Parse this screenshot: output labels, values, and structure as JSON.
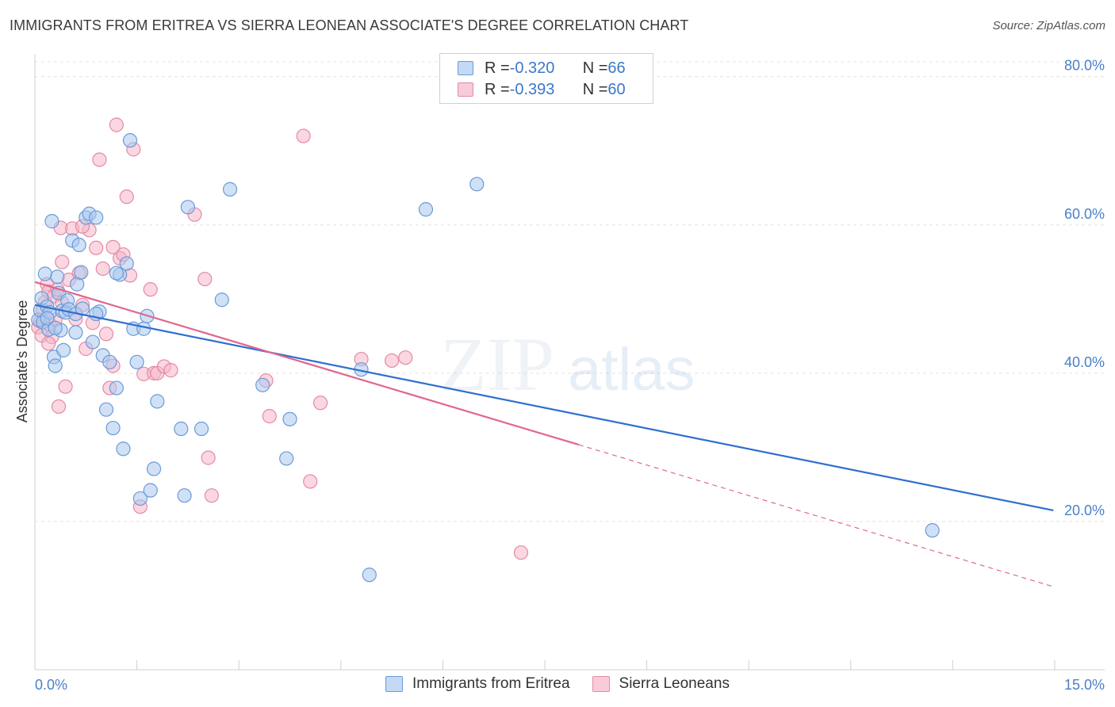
{
  "header": {
    "title": "IMMIGRANTS FROM ERITREA VS SIERRA LEONEAN ASSOCIATE'S DEGREE CORRELATION CHART",
    "source": "Source: ZipAtlas.com"
  },
  "watermark": {
    "zip": "ZIP",
    "atlas": "atlas"
  },
  "legend": {
    "rows": [
      {
        "r_label": "R = ",
        "r_value": "-0.320",
        "n_label": "N = ",
        "n_value": "66"
      },
      {
        "r_label": "R = ",
        "r_value": "-0.393",
        "n_label": "N = ",
        "n_value": "60"
      }
    ]
  },
  "colors": {
    "blue_fill": "#aac8ef",
    "blue_stroke": "#6b9ad8",
    "blue_line": "#2f6fcf",
    "pink_fill": "#f5b7c9",
    "pink_stroke": "#e48aa6",
    "pink_line": "#e0668f",
    "grid": "#e4e4e4",
    "axis_text": "#4a7fc9"
  },
  "chart_data": {
    "type": "scatter",
    "title": "IMMIGRANTS FROM ERITREA VS SIERRA LEONEAN ASSOCIATE'S DEGREE CORRELATION CHART",
    "xlabel": "",
    "ylabel": "Associate's Degree",
    "xlim": [
      0,
      15
    ],
    "ylim": [
      0,
      82
    ],
    "x_tick_labels": [
      "0.0%",
      "15.0%"
    ],
    "y_ticks": [
      20,
      40,
      60,
      80
    ],
    "y_tick_labels": [
      "20.0%",
      "40.0%",
      "60.0%",
      "80.0%"
    ],
    "grid": true,
    "series": [
      {
        "name": "Immigrants from Eritrea",
        "color": "blue",
        "trend": {
          "x0": 0,
          "y0": 49.2,
          "x1": 14.98,
          "y1": 21.5,
          "solid_until": 14.98
        },
        "points": [
          [
            0.05,
            47.2
          ],
          [
            0.08,
            48.5
          ],
          [
            0.1,
            50.1
          ],
          [
            0.12,
            46.9
          ],
          [
            0.15,
            53.4
          ],
          [
            0.18,
            49.0
          ],
          [
            0.2,
            45.9
          ],
          [
            0.22,
            48.2
          ],
          [
            0.25,
            60.5
          ],
          [
            0.28,
            42.2
          ],
          [
            0.3,
            41.0
          ],
          [
            0.33,
            53.0
          ],
          [
            0.35,
            50.8
          ],
          [
            0.38,
            45.8
          ],
          [
            0.4,
            48.4
          ],
          [
            0.42,
            43.1
          ],
          [
            0.45,
            48.2
          ],
          [
            0.48,
            49.8
          ],
          [
            0.5,
            48.6
          ],
          [
            0.55,
            57.9
          ],
          [
            0.6,
            48.0
          ],
          [
            0.62,
            52.0
          ],
          [
            0.65,
            57.3
          ],
          [
            0.68,
            53.6
          ],
          [
            0.7,
            48.7
          ],
          [
            0.75,
            61.0
          ],
          [
            0.8,
            61.5
          ],
          [
            0.85,
            44.2
          ],
          [
            0.9,
            61.0
          ],
          [
            0.95,
            48.3
          ],
          [
            1.0,
            42.4
          ],
          [
            1.05,
            35.1
          ],
          [
            1.1,
            41.5
          ],
          [
            1.15,
            32.6
          ],
          [
            1.2,
            38.0
          ],
          [
            1.25,
            53.3
          ],
          [
            1.3,
            29.8
          ],
          [
            1.35,
            54.8
          ],
          [
            1.4,
            71.4
          ],
          [
            1.45,
            46.0
          ],
          [
            1.5,
            41.5
          ],
          [
            1.55,
            23.1
          ],
          [
            1.6,
            46.0
          ],
          [
            1.65,
            47.7
          ],
          [
            1.7,
            24.2
          ],
          [
            1.75,
            27.1
          ],
          [
            1.8,
            36.2
          ],
          [
            2.15,
            32.5
          ],
          [
            2.2,
            23.5
          ],
          [
            2.25,
            62.4
          ],
          [
            2.45,
            32.5
          ],
          [
            2.75,
            49.9
          ],
          [
            2.87,
            64.8
          ],
          [
            3.35,
            38.4
          ],
          [
            3.7,
            28.5
          ],
          [
            3.75,
            33.8
          ],
          [
            4.8,
            40.5
          ],
          [
            4.92,
            12.8
          ],
          [
            5.75,
            62.1
          ],
          [
            6.5,
            65.5
          ],
          [
            13.2,
            18.8
          ],
          [
            0.18,
            47.4
          ],
          [
            0.3,
            46.1
          ],
          [
            0.6,
            45.5
          ],
          [
            0.9,
            48.0
          ],
          [
            1.2,
            53.5
          ]
        ]
      },
      {
        "name": "Sierra Leoneans",
        "color": "pink",
        "trend": {
          "x0": 0,
          "y0": 52.3,
          "x1": 14.98,
          "y1": 11.2,
          "solid_until": 8.0
        },
        "points": [
          [
            0.05,
            46.2
          ],
          [
            0.08,
            47.0
          ],
          [
            0.1,
            45.1
          ],
          [
            0.12,
            48.5
          ],
          [
            0.15,
            49.6
          ],
          [
            0.18,
            52.0
          ],
          [
            0.2,
            51.0
          ],
          [
            0.22,
            46.6
          ],
          [
            0.25,
            44.9
          ],
          [
            0.28,
            50.4
          ],
          [
            0.3,
            47.2
          ],
          [
            0.33,
            51.3
          ],
          [
            0.35,
            35.5
          ],
          [
            0.38,
            59.6
          ],
          [
            0.4,
            55.0
          ],
          [
            0.45,
            38.2
          ],
          [
            0.5,
            52.6
          ],
          [
            0.55,
            59.5
          ],
          [
            0.6,
            47.3
          ],
          [
            0.65,
            53.5
          ],
          [
            0.7,
            49.2
          ],
          [
            0.75,
            43.3
          ],
          [
            0.8,
            59.3
          ],
          [
            0.85,
            46.8
          ],
          [
            0.9,
            56.9
          ],
          [
            0.95,
            68.8
          ],
          [
            1.0,
            54.1
          ],
          [
            1.05,
            45.3
          ],
          [
            1.1,
            38.0
          ],
          [
            1.15,
            41.0
          ],
          [
            1.2,
            73.5
          ],
          [
            1.25,
            55.5
          ],
          [
            1.35,
            63.8
          ],
          [
            1.4,
            53.2
          ],
          [
            1.45,
            70.2
          ],
          [
            1.55,
            22.0
          ],
          [
            1.6,
            39.9
          ],
          [
            1.7,
            51.3
          ],
          [
            1.75,
            40.0
          ],
          [
            1.8,
            40.0
          ],
          [
            1.9,
            40.9
          ],
          [
            2.0,
            40.4
          ],
          [
            2.35,
            61.4
          ],
          [
            2.5,
            52.7
          ],
          [
            2.55,
            28.6
          ],
          [
            2.6,
            23.5
          ],
          [
            3.4,
            39.0
          ],
          [
            3.45,
            34.2
          ],
          [
            3.95,
            72.0
          ],
          [
            4.05,
            25.4
          ],
          [
            4.2,
            36.0
          ],
          [
            4.8,
            41.9
          ],
          [
            5.25,
            41.7
          ],
          [
            5.45,
            42.1
          ],
          [
            7.15,
            15.8
          ],
          [
            0.2,
            44.0
          ],
          [
            0.4,
            49.5
          ],
          [
            0.7,
            59.8
          ],
          [
            1.15,
            57.0
          ],
          [
            1.3,
            56.0
          ]
        ]
      }
    ]
  },
  "bottom_legend": {
    "items": [
      {
        "label": "Immigrants from Eritrea"
      },
      {
        "label": "Sierra Leoneans"
      }
    ]
  }
}
